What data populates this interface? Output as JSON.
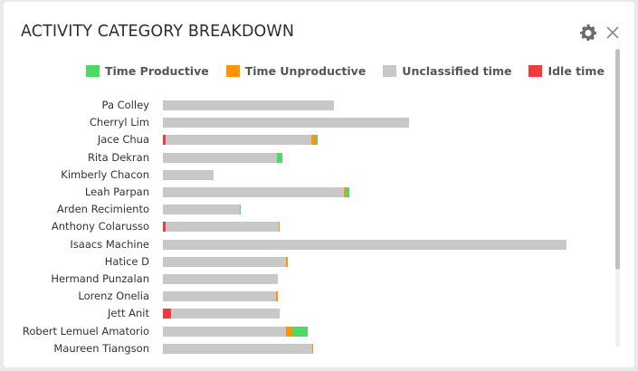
{
  "widget": {
    "title": "ACTIVITY CATEGORY BREAKDOWN",
    "settings_icon": "gear-icon",
    "close_icon": "close-icon"
  },
  "colors": {
    "productive": "#4cd964",
    "unproductive": "#ff9500",
    "unclassified": "#c8c8c8",
    "idle": "#f03c3c"
  },
  "legend": [
    {
      "key": "productive",
      "label": "Time Productive"
    },
    {
      "key": "unproductive",
      "label": "Time Unproductive"
    },
    {
      "key": "unclassified",
      "label": "Unclassified time"
    },
    {
      "key": "idle",
      "label": "Idle time"
    }
  ],
  "chart_data": {
    "type": "bar",
    "orientation": "horizontal",
    "stacked": true,
    "categories": [
      "Pa Colley",
      "Cherryl Lim",
      "Jace Chua",
      "Rita Dekran",
      "Kimberly Chacon",
      "Leah Parpan",
      "Arden Recimiento",
      "Anthony Colarusso",
      "Isaacs Machine",
      "Hatice D",
      "Hermand Punzalan",
      "Lorenz Onelia",
      "Jett Anit",
      "Robert Lemuel Amatorio",
      "Maureen Tiangson"
    ],
    "series": [
      {
        "name": "Idle time",
        "key": "idle",
        "values": [
          0,
          0,
          0.6,
          0,
          0,
          0,
          0,
          0.6,
          0,
          0,
          0,
          0,
          2,
          0,
          0
        ]
      },
      {
        "name": "Unclassified time",
        "key": "unclassified",
        "values": [
          42.4,
          61,
          36.1,
          28.3,
          12.6,
          44.8,
          19.1,
          28.1,
          100,
          30.6,
          28.5,
          28,
          26.9,
          30.4,
          36.9
        ]
      },
      {
        "name": "Time Unproductive",
        "key": "unproductive",
        "values": [
          0,
          0,
          1.3,
          0,
          0,
          0.4,
          0,
          0.3,
          0,
          0.3,
          0,
          0.4,
          0,
          1.6,
          0.3
        ]
      },
      {
        "name": "Time Productive",
        "key": "productive",
        "values": [
          0,
          0,
          0.4,
          1.3,
          0,
          0.9,
          0.2,
          0,
          0,
          0,
          0,
          0,
          0,
          3.8,
          0
        ]
      }
    ],
    "xlim": [
      0,
      100
    ],
    "legend_position": "top"
  }
}
